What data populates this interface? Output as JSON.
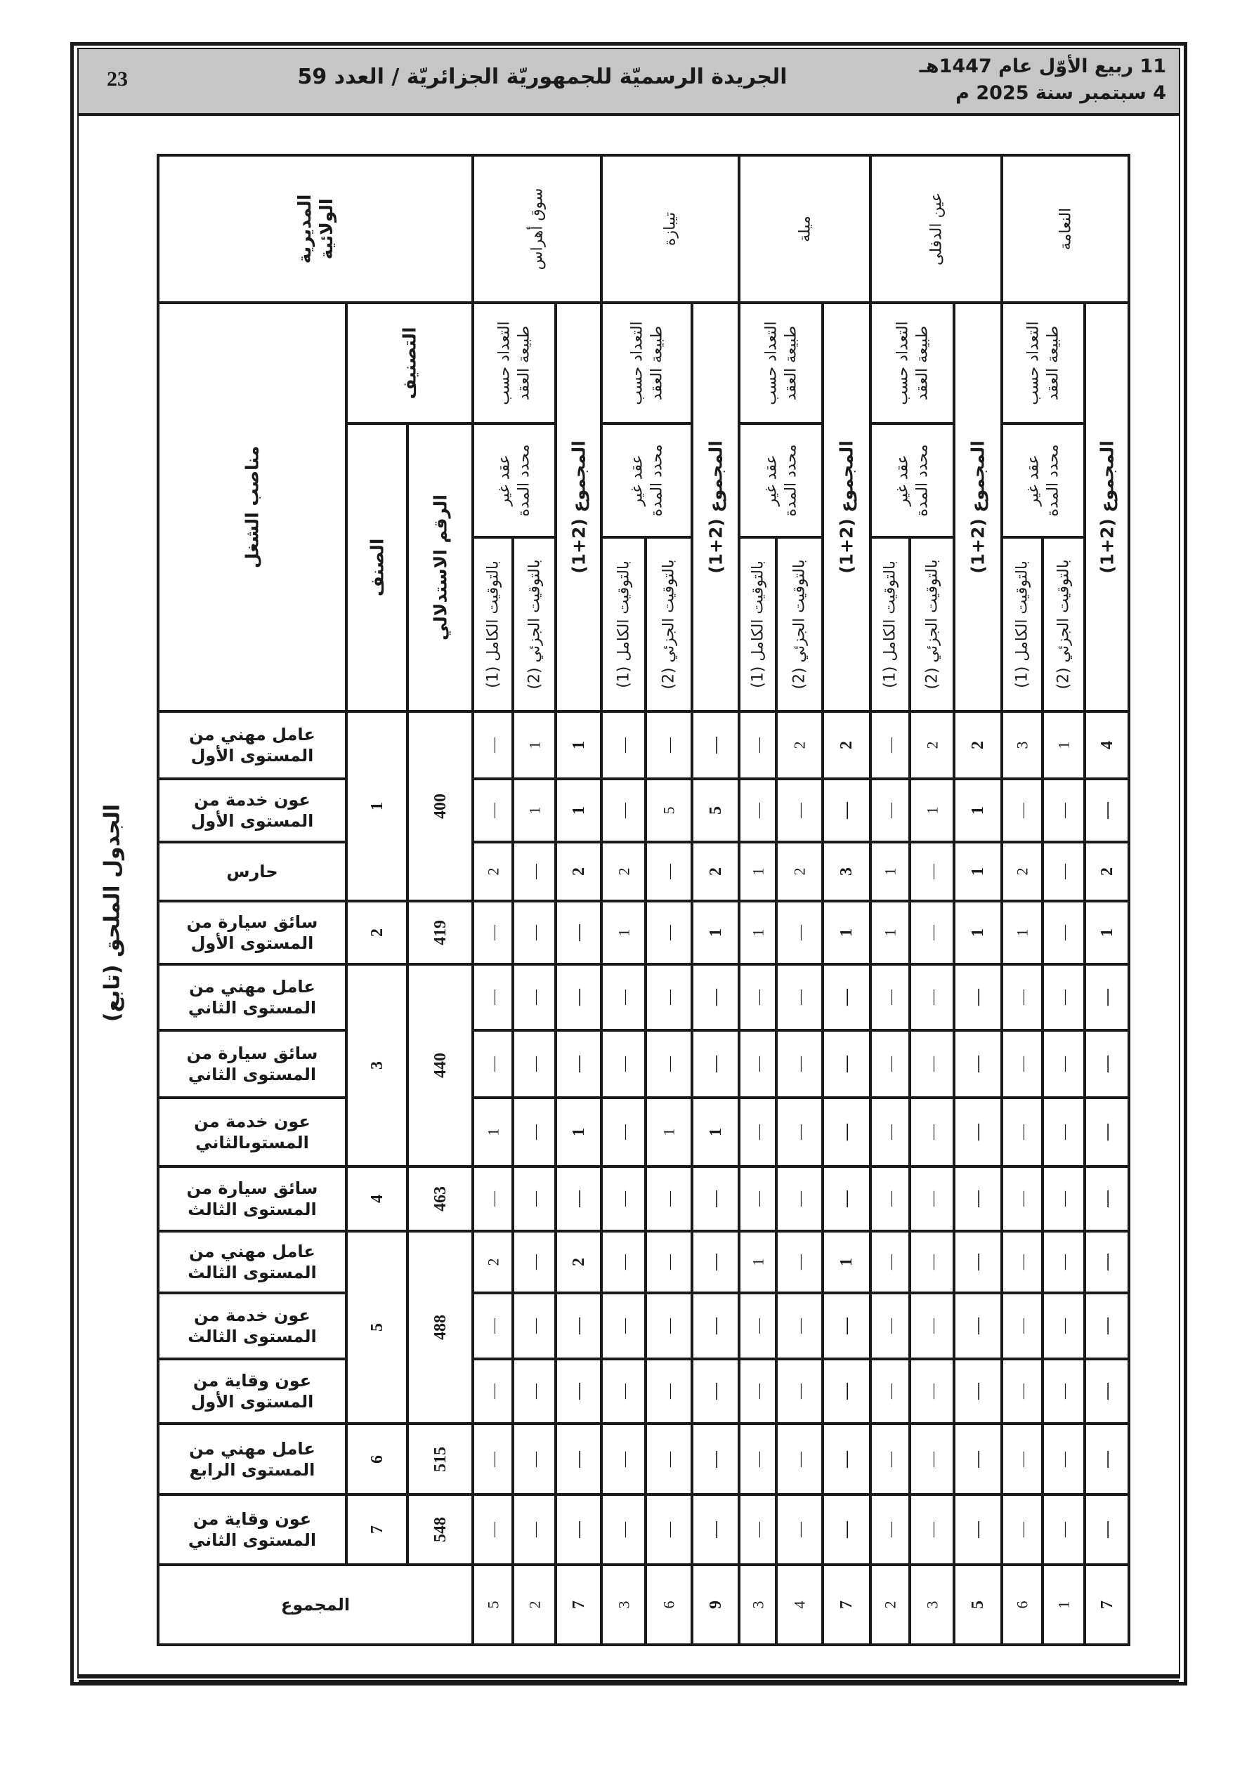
{
  "header": {
    "date_hijri": "11 ربيع الأوّل عام 1447هـ",
    "date_gregorian": "4 سبتمبر سنة 2025 م",
    "title": "الجريدة الرسميّة للجمهوريّة الجزائريّة / العدد 59",
    "page_number": "23"
  },
  "caption": "الجدول الملحق (تابع)",
  "table": {
    "header_directorate": "المديرية\nالولائية",
    "header_jobs": "مناصب الشغل",
    "header_classification": "التصنيف",
    "header_category": "الصنف",
    "header_index": "الرقم الاستدلالي",
    "header_by_contract": "التعداد حسب\nطبيعة العقد",
    "header_permanent": "عقد غير\nمحدد المدة",
    "header_full_time": "بالتوقيت الكامل (1)",
    "header_part_time": "بالتوقيت الجزئي (2)",
    "header_total": "المجموع (2+1)",
    "wilayas": [
      "سوق أهراس",
      "تيبازة",
      "ميلة",
      "عين الدفلى",
      "النعامة"
    ],
    "groups": [
      {
        "category": "1",
        "index": "400",
        "jobs": [
          {
            "title": "عامل مهني من\nالمستوى الأول",
            "values": [
              "—",
              "1",
              "1",
              "—",
              "—",
              "—",
              "—",
              "2",
              "2",
              "—",
              "2",
              "2",
              "3",
              "1",
              "4"
            ]
          },
          {
            "title": "عون خدمة من\nالمستوى الأول",
            "values": [
              "—",
              "1",
              "1",
              "—",
              "5",
              "5",
              "—",
              "—",
              "—",
              "—",
              "1",
              "1",
              "—",
              "—",
              "—"
            ]
          },
          {
            "title": "حارس",
            "values": [
              "2",
              "—",
              "2",
              "2",
              "—",
              "2",
              "1",
              "2",
              "3",
              "1",
              "—",
              "1",
              "2",
              "—",
              "2"
            ]
          }
        ]
      },
      {
        "category": "2",
        "index": "419",
        "jobs": [
          {
            "title": "سائق سيارة من\nالمستوى الأول",
            "values": [
              "—",
              "—",
              "—",
              "1",
              "—",
              "1",
              "1",
              "—",
              "1",
              "1",
              "—",
              "1",
              "1",
              "—",
              "1"
            ]
          }
        ]
      },
      {
        "category": "3",
        "index": "440",
        "jobs": [
          {
            "title": "عامل مهني من\nالمستوى الثاني",
            "values": [
              "—",
              "—",
              "—",
              "—",
              "—",
              "—",
              "—",
              "—",
              "—",
              "—",
              "—",
              "—",
              "—",
              "—",
              "—"
            ]
          },
          {
            "title": "سائق سيارة من\nالمستوى الثاني",
            "values": [
              "—",
              "—",
              "—",
              "—",
              "—",
              "—",
              "—",
              "—",
              "—",
              "—",
              "—",
              "—",
              "—",
              "—",
              "—"
            ]
          },
          {
            "title": "عون خدمة من\nالمستوىالثاني",
            "values": [
              "1",
              "—",
              "1",
              "—",
              "1",
              "1",
              "—",
              "—",
              "—",
              "—",
              "—",
              "—",
              "—",
              "—",
              "—"
            ]
          }
        ]
      },
      {
        "category": "4",
        "index": "463",
        "jobs": [
          {
            "title": "سائق سيارة من\nالمستوى الثالث",
            "values": [
              "—",
              "—",
              "—",
              "—",
              "—",
              "—",
              "—",
              "—",
              "—",
              "—",
              "—",
              "—",
              "—",
              "—",
              "—"
            ]
          }
        ]
      },
      {
        "category": "5",
        "index": "488",
        "jobs": [
          {
            "title": "عامل مهني من\nالمستوى الثالث",
            "values": [
              "2",
              "—",
              "2",
              "—",
              "—",
              "—",
              "1",
              "—",
              "1",
              "—",
              "—",
              "—",
              "—",
              "—",
              "—"
            ]
          },
          {
            "title": "عون خدمة من\nالمستوى الثالث",
            "values": [
              "—",
              "—",
              "—",
              "—",
              "—",
              "—",
              "—",
              "—",
              "—",
              "—",
              "—",
              "—",
              "—",
              "—",
              "—"
            ]
          },
          {
            "title": "عون وقاية من\nالمستوى الأول",
            "values": [
              "—",
              "—",
              "—",
              "—",
              "—",
              "—",
              "—",
              "—",
              "—",
              "—",
              "—",
              "—",
              "—",
              "—",
              "—"
            ]
          }
        ]
      },
      {
        "category": "6",
        "index": "515",
        "jobs": [
          {
            "title": "عامل مهني من\nالمستوى الرابع",
            "values": [
              "—",
              "—",
              "—",
              "—",
              "—",
              "—",
              "—",
              "—",
              "—",
              "—",
              "—",
              "—",
              "—",
              "—",
              "—"
            ]
          }
        ]
      },
      {
        "category": "7",
        "index": "548",
        "jobs": [
          {
            "title": "عون وقاية من\nالمستوى الثاني",
            "values": [
              "—",
              "—",
              "—",
              "—",
              "—",
              "—",
              "—",
              "—",
              "—",
              "—",
              "—",
              "—",
              "—",
              "—",
              "—"
            ]
          }
        ]
      }
    ],
    "totals_label": "المجموع",
    "totals": [
      "5",
      "2",
      "7",
      "3",
      "6",
      "9",
      "3",
      "4",
      "7",
      "2",
      "3",
      "5",
      "6",
      "1",
      "7"
    ]
  }
}
